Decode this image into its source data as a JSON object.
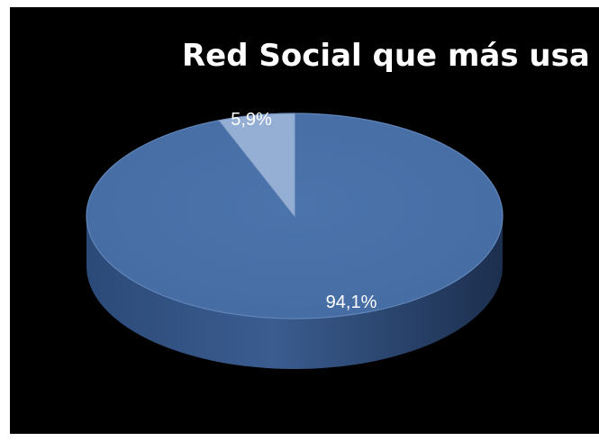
{
  "chart_data": {
    "type": "pie",
    "title": "Red Social que más usa",
    "values": [
      94.1,
      5.9
    ],
    "data_labels": [
      "94,1%",
      "5,9%"
    ],
    "colors": [
      "#4a72aa",
      "#95aed3"
    ],
    "style": "3d"
  }
}
